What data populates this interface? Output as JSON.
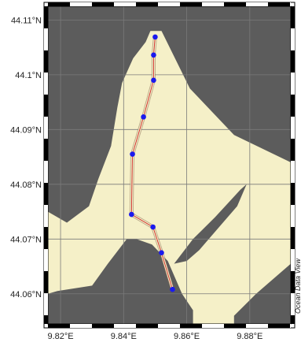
{
  "colors": {
    "land": "#5c5c5c",
    "sea": "#f5f0c8",
    "grid": "#7a7a7a",
    "track": "#cc2222",
    "station": "#1a1aee",
    "frame_dark": "#000000",
    "frame_light": "#ffffff"
  },
  "map": {
    "lon_range": [
      9.816,
      9.893
    ],
    "lat_range": [
      44.0545,
      44.1125
    ],
    "x_ticks": [
      {
        "value": 9.82,
        "label": "9.82°E"
      },
      {
        "value": 9.84,
        "label": "9.84°E"
      },
      {
        "value": 9.86,
        "label": "9.86°E"
      },
      {
        "value": 9.88,
        "label": "9.88°E"
      }
    ],
    "y_ticks": [
      {
        "value": 44.06,
        "label": "44.06°N"
      },
      {
        "value": 44.07,
        "label": "44.07°N"
      },
      {
        "value": 44.08,
        "label": "44.08°N"
      },
      {
        "value": 44.09,
        "label": "44.09°N"
      },
      {
        "value": 44.1,
        "label": "44.10°N",
        "text": "44.1°N"
      },
      {
        "value": 44.11,
        "label": "44.11°N"
      }
    ],
    "credit": "Ocean Data View",
    "stations": [
      {
        "lon": 9.85,
        "lat": 44.1069
      },
      {
        "lon": 9.8495,
        "lat": 44.1036
      },
      {
        "lon": 9.8495,
        "lat": 44.099
      },
      {
        "lon": 9.8463,
        "lat": 44.0923
      },
      {
        "lon": 9.8428,
        "lat": 44.0855
      },
      {
        "lon": 9.8425,
        "lat": 44.0745
      },
      {
        "lon": 9.8493,
        "lat": 44.0722
      },
      {
        "lon": 9.852,
        "lat": 44.0675
      },
      {
        "lon": 9.8555,
        "lat": 44.0608
      }
    ],
    "sea_polygon": [
      [
        9.8485,
        44.108
      ],
      [
        9.852,
        44.108
      ],
      [
        9.861,
        44.0975
      ],
      [
        9.875,
        44.089
      ],
      [
        9.893,
        44.084
      ],
      [
        9.893,
        44.0545
      ],
      [
        9.862,
        44.0545
      ],
      [
        9.862,
        44.057
      ],
      [
        9.8585,
        44.06
      ],
      [
        9.854,
        44.066
      ],
      [
        9.849,
        44.069
      ],
      [
        9.844,
        44.07
      ],
      [
        9.841,
        44.07
      ],
      [
        9.835,
        44.0655
      ],
      [
        9.83,
        44.0615
      ],
      [
        9.819,
        44.0605
      ],
      [
        9.816,
        44.06
      ],
      [
        9.816,
        44.075
      ],
      [
        9.822,
        44.073
      ],
      [
        9.829,
        44.076
      ],
      [
        9.832,
        44.081
      ],
      [
        9.836,
        44.087
      ],
      [
        9.838,
        44.094
      ],
      [
        9.8395,
        44.0985
      ],
      [
        9.843,
        44.103
      ],
      [
        9.847,
        44.106
      ]
    ],
    "inner_land": [
      [
        9.856,
        44.0655
      ],
      [
        9.862,
        44.07
      ],
      [
        9.869,
        44.074
      ],
      [
        9.877,
        44.079
      ],
      [
        9.879,
        44.08
      ],
      [
        9.876,
        44.076
      ],
      [
        9.87,
        44.072
      ],
      [
        9.864,
        44.068
      ],
      [
        9.86,
        44.066
      ]
    ],
    "lower_right_land": [
      [
        9.875,
        44.056
      ],
      [
        9.882,
        44.06
      ],
      [
        9.893,
        44.0655
      ],
      [
        9.893,
        44.0545
      ],
      [
        9.875,
        44.0545
      ]
    ]
  }
}
